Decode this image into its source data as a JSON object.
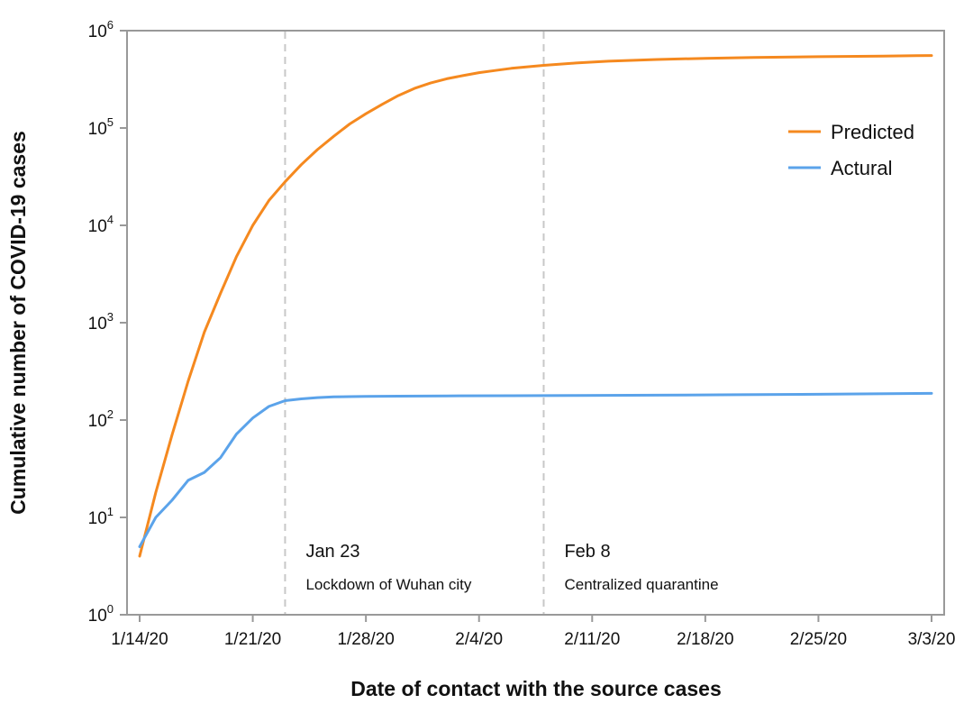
{
  "chart_data": {
    "type": "line",
    "title": "",
    "xlabel": "Date of contact with the source cases",
    "ylabel": "Cumulative number of COVID-19 cases",
    "y_scale": "log",
    "ylim": [
      1,
      1000000
    ],
    "xlim": [
      "2020-01-14",
      "2020-03-03"
    ],
    "grid": false,
    "legend_position": "top-right",
    "x_tick_dates": [
      "2020-01-14",
      "2020-01-21",
      "2020-01-28",
      "2020-02-04",
      "2020-02-11",
      "2020-02-18",
      "2020-02-25",
      "2020-03-03"
    ],
    "x_tick_labels": [
      "1/14/20",
      "1/21/20",
      "1/28/20",
      "2/4/20",
      "2/11/20",
      "2/18/20",
      "2/25/20",
      "3/3/20"
    ],
    "y_ticks": [
      {
        "value": 1,
        "base": "10",
        "exp": "0"
      },
      {
        "value": 10,
        "base": "10",
        "exp": "1"
      },
      {
        "value": 100,
        "base": "10",
        "exp": "2"
      },
      {
        "value": 1000,
        "base": "10",
        "exp": "3"
      },
      {
        "value": 10000,
        "base": "10",
        "exp": "4"
      },
      {
        "value": 100000,
        "base": "10",
        "exp": "5"
      },
      {
        "value": 1000000,
        "base": "10",
        "exp": "6"
      }
    ],
    "annotations": [
      {
        "date": "2020-01-23",
        "label": "Jan 23",
        "note": "Lockdown of Wuhan city"
      },
      {
        "date": "2020-02-08",
        "label": "Feb 8",
        "note": "Centralized quarantine"
      }
    ],
    "series": [
      {
        "name": "Predicted",
        "color": "#f5891f",
        "points": [
          [
            "2020-01-14",
            4
          ],
          [
            "2020-01-15",
            18
          ],
          [
            "2020-01-16",
            70
          ],
          [
            "2020-01-17",
            250
          ],
          [
            "2020-01-18",
            800
          ],
          [
            "2020-01-19",
            2000
          ],
          [
            "2020-01-20",
            4800
          ],
          [
            "2020-01-21",
            10000
          ],
          [
            "2020-01-22",
            18000
          ],
          [
            "2020-01-23",
            28000
          ],
          [
            "2020-01-24",
            42000
          ],
          [
            "2020-01-25",
            60000
          ],
          [
            "2020-01-26",
            82000
          ],
          [
            "2020-01-27",
            110000
          ],
          [
            "2020-01-28",
            140000
          ],
          [
            "2020-01-29",
            175000
          ],
          [
            "2020-01-30",
            215000
          ],
          [
            "2020-01-31",
            255000
          ],
          [
            "2020-02-01",
            290000
          ],
          [
            "2020-02-02",
            320000
          ],
          [
            "2020-02-03",
            345000
          ],
          [
            "2020-02-04",
            370000
          ],
          [
            "2020-02-05",
            390000
          ],
          [
            "2020-02-06",
            410000
          ],
          [
            "2020-02-07",
            425000
          ],
          [
            "2020-02-08",
            440000
          ],
          [
            "2020-02-10",
            465000
          ],
          [
            "2020-02-12",
            485000
          ],
          [
            "2020-02-15",
            505000
          ],
          [
            "2020-02-18",
            520000
          ],
          [
            "2020-02-21",
            530000
          ],
          [
            "2020-02-25",
            540000
          ],
          [
            "2020-02-29",
            548000
          ],
          [
            "2020-03-03",
            555000
          ]
        ]
      },
      {
        "name": "Actural",
        "color": "#5ba3ea",
        "points": [
          [
            "2020-01-14",
            5
          ],
          [
            "2020-01-15",
            10
          ],
          [
            "2020-01-16",
            15
          ],
          [
            "2020-01-17",
            24
          ],
          [
            "2020-01-18",
            29
          ],
          [
            "2020-01-19",
            41
          ],
          [
            "2020-01-20",
            72
          ],
          [
            "2020-01-21",
            105
          ],
          [
            "2020-01-22",
            138
          ],
          [
            "2020-01-23",
            158
          ],
          [
            "2020-01-24",
            165
          ],
          [
            "2020-01-25",
            170
          ],
          [
            "2020-01-26",
            173
          ],
          [
            "2020-01-27",
            174
          ],
          [
            "2020-01-28",
            175
          ],
          [
            "2020-01-30",
            176
          ],
          [
            "2020-02-02",
            177
          ],
          [
            "2020-02-06",
            178
          ],
          [
            "2020-02-10",
            179
          ],
          [
            "2020-02-15",
            180
          ],
          [
            "2020-02-20",
            182
          ],
          [
            "2020-02-25",
            184
          ],
          [
            "2020-03-03",
            188
          ]
        ]
      }
    ]
  }
}
